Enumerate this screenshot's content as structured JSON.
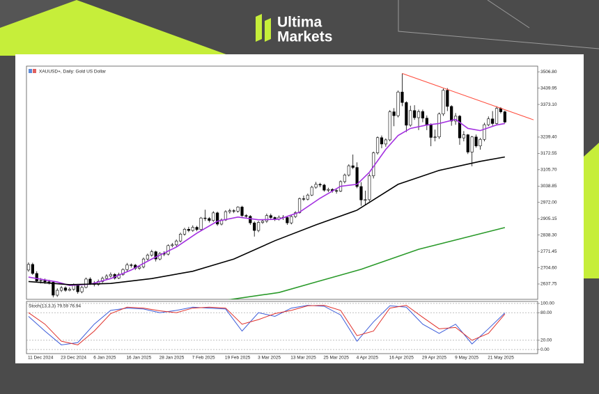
{
  "brand": {
    "line1": "Ultima",
    "line2": "Markets"
  },
  "chart_data": [
    {
      "type": "candlestick",
      "title": "XAUUSD+, Daily: Gold US Dollar",
      "categories": [
        "11 Dec 2024",
        null,
        null,
        null,
        null,
        null,
        null,
        null,
        "23 Dec 2024",
        null,
        null,
        null,
        null,
        null,
        null,
        null,
        "6 Jan 2025",
        null,
        null,
        null,
        null,
        null,
        null,
        null,
        "16 Jan 2025",
        null,
        null,
        null,
        null,
        null,
        null,
        null,
        "28 Jan 2025",
        null,
        null,
        null,
        null,
        null,
        null,
        null,
        "7 Feb 2025",
        null,
        null,
        null,
        null,
        null,
        null,
        null,
        "19 Feb 2025",
        null,
        null,
        null,
        null,
        null,
        null,
        null,
        "3 Mar 2025",
        null,
        null,
        null,
        null,
        null,
        null,
        null,
        "13 Mar 2025",
        null,
        null,
        null,
        null,
        null,
        null,
        null,
        "25 Mar 2025",
        null,
        null,
        null,
        null,
        null,
        null,
        null,
        "4 Apr 2025",
        null,
        null,
        null,
        null,
        null,
        null,
        null,
        "16 Apr 2025",
        null,
        null,
        null,
        null,
        null,
        null,
        null,
        "29 Apr 2025",
        null,
        null,
        null,
        null,
        null,
        null,
        null,
        "9 May 2025",
        null,
        null,
        null,
        null,
        null,
        null,
        null,
        "21 May 2025",
        null,
        null,
        null,
        null
      ],
      "ohlc": [
        [
          2695,
          2726,
          2688,
          2718
        ],
        [
          2718,
          2725,
          2675,
          2681
        ],
        [
          2681,
          2690,
          2644,
          2650
        ],
        [
          2650,
          2662,
          2640,
          2652
        ],
        [
          2652,
          2660,
          2638,
          2647
        ],
        [
          2647,
          2655,
          2636,
          2645
        ],
        [
          2645,
          2650,
          2583,
          2592
        ],
        [
          2592,
          2620,
          2585,
          2612
        ],
        [
          2612,
          2630,
          2605,
          2622
        ],
        [
          2622,
          2628,
          2606,
          2612
        ],
        [
          2612,
          2624,
          2608,
          2616
        ],
        [
          2616,
          2640,
          2610,
          2633
        ],
        [
          2633,
          2638,
          2598,
          2606
        ],
        [
          2606,
          2630,
          2600,
          2624
        ],
        [
          2624,
          2664,
          2620,
          2658
        ],
        [
          2658,
          2665,
          2634,
          2640
        ],
        [
          2640,
          2650,
          2628,
          2636
        ],
        [
          2636,
          2656,
          2630,
          2648
        ],
        [
          2648,
          2668,
          2642,
          2661
        ],
        [
          2661,
          2678,
          2655,
          2670
        ],
        [
          2670,
          2685,
          2664,
          2677
        ],
        [
          2677,
          2682,
          2656,
          2662
        ],
        [
          2662,
          2684,
          2658,
          2677
        ],
        [
          2677,
          2702,
          2672,
          2697
        ],
        [
          2697,
          2724,
          2690,
          2716
        ],
        [
          2716,
          2722,
          2705,
          2715
        ],
        [
          2715,
          2720,
          2695,
          2702
        ],
        [
          2702,
          2714,
          2696,
          2708
        ],
        [
          2708,
          2746,
          2702,
          2740
        ],
        [
          2740,
          2762,
          2734,
          2756
        ],
        [
          2756,
          2778,
          2750,
          2770
        ],
        [
          2770,
          2774,
          2730,
          2740
        ],
        [
          2740,
          2768,
          2735,
          2763
        ],
        [
          2763,
          2772,
          2752,
          2760
        ],
        [
          2760,
          2800,
          2755,
          2795
        ],
        [
          2795,
          2806,
          2788,
          2798
        ],
        [
          2798,
          2820,
          2792,
          2814
        ],
        [
          2814,
          2848,
          2808,
          2842
        ],
        [
          2842,
          2868,
          2836,
          2862
        ],
        [
          2862,
          2872,
          2850,
          2857
        ],
        [
          2857,
          2878,
          2852,
          2870
        ],
        [
          2870,
          2876,
          2854,
          2861
        ],
        [
          2861,
          2912,
          2856,
          2908
        ],
        [
          2908,
          2942,
          2896,
          2906
        ],
        [
          2906,
          2912,
          2890,
          2898
        ],
        [
          2898,
          2936,
          2892,
          2929
        ],
        [
          2929,
          2934,
          2876,
          2883
        ],
        [
          2883,
          2906,
          2878,
          2900
        ],
        [
          2900,
          2940,
          2896,
          2934
        ],
        [
          2934,
          2946,
          2926,
          2938
        ],
        [
          2938,
          2944,
          2928,
          2936
        ],
        [
          2936,
          2956,
          2930,
          2953
        ],
        [
          2953,
          2958,
          2912,
          2918
        ],
        [
          2918,
          2924,
          2906,
          2915
        ],
        [
          2915,
          2920,
          2880,
          2888
        ],
        [
          2888,
          2894,
          2832,
          2857
        ],
        [
          2857,
          2896,
          2850,
          2890
        ],
        [
          2890,
          2902,
          2884,
          2895
        ],
        [
          2895,
          2926,
          2888,
          2918
        ],
        [
          2918,
          2926,
          2902,
          2910
        ],
        [
          2910,
          2914,
          2896,
          2904
        ],
        [
          2904,
          2918,
          2898,
          2911
        ],
        [
          2911,
          2920,
          2900,
          2910
        ],
        [
          2910,
          2914,
          2880,
          2888
        ],
        [
          2888,
          2920,
          2882,
          2914
        ],
        [
          2914,
          2936,
          2908,
          2930
        ],
        [
          2930,
          2992,
          2926,
          2987
        ],
        [
          2987,
          3000,
          2978,
          2985
        ],
        [
          2985,
          3008,
          2980,
          3002
        ],
        [
          3002,
          3040,
          2998,
          3034
        ],
        [
          3034,
          3056,
          3028,
          3046
        ],
        [
          3046,
          3052,
          3034,
          3043
        ],
        [
          3043,
          3048,
          3016,
          3022
        ],
        [
          3022,
          3032,
          3014,
          3025
        ],
        [
          3025,
          3030,
          3012,
          3020
        ],
        [
          3020,
          3026,
          3008,
          3018
        ],
        [
          3018,
          3062,
          3014,
          3057
        ],
        [
          3057,
          3090,
          3050,
          3084
        ],
        [
          3084,
          3128,
          3078,
          3122
        ],
        [
          3122,
          3168,
          3108,
          3115
        ],
        [
          3115,
          3136,
          3030,
          3037
        ],
        [
          3037,
          3055,
          2958,
          2982
        ],
        [
          2982,
          3020,
          2960,
          2983
        ],
        [
          2983,
          3090,
          2976,
          3081
        ],
        [
          3081,
          3180,
          3070,
          3175
        ],
        [
          3175,
          3242,
          3168,
          3237
        ],
        [
          3237,
          3246,
          3194,
          3211
        ],
        [
          3211,
          3234,
          3200,
          3228
        ],
        [
          3228,
          3350,
          3222,
          3343
        ],
        [
          3343,
          3358,
          3284,
          3327
        ],
        [
          3327,
          3430,
          3320,
          3424
        ],
        [
          3424,
          3500,
          3366,
          3381
        ],
        [
          3381,
          3386,
          3260,
          3288
        ],
        [
          3288,
          3368,
          3282,
          3348
        ],
        [
          3348,
          3370,
          3310,
          3319
        ],
        [
          3319,
          3352,
          3268,
          3344
        ],
        [
          3344,
          3352,
          3300,
          3317
        ],
        [
          3317,
          3328,
          3268,
          3288
        ],
        [
          3288,
          3296,
          3202,
          3238
        ],
        [
          3238,
          3270,
          3222,
          3240
        ],
        [
          3240,
          3340,
          3232,
          3334
        ],
        [
          3334,
          3438,
          3326,
          3431
        ],
        [
          3431,
          3440,
          3346,
          3365
        ],
        [
          3365,
          3370,
          3286,
          3305
        ],
        [
          3305,
          3338,
          3290,
          3325
        ],
        [
          3325,
          3330,
          3208,
          3236
        ],
        [
          3236,
          3264,
          3222,
          3249
        ],
        [
          3249,
          3252,
          3170,
          3178
        ],
        [
          3178,
          3244,
          3120,
          3240
        ],
        [
          3240,
          3250,
          3196,
          3203
        ],
        [
          3203,
          3236,
          3188,
          3230
        ],
        [
          3230,
          3298,
          3222,
          3290
        ],
        [
          3290,
          3324,
          3284,
          3314
        ],
        [
          3314,
          3346,
          3286,
          3295
        ],
        [
          3295,
          3366,
          3288,
          3357
        ],
        [
          3357,
          3362,
          3336,
          3343
        ],
        [
          3343,
          3348,
          3296,
          3301
        ]
      ],
      "up_color": "#ffffff",
      "down_color": "#000000",
      "wick_color": "#000000",
      "series": [
        {
          "color": "#a330e0",
          "x": [
            0,
            7,
            10,
            15,
            20,
            25,
            30,
            36,
            41,
            46,
            51,
            56,
            61,
            66,
            71,
            76,
            80,
            83,
            87,
            90,
            93,
            97,
            100,
            104,
            107,
            110,
            114,
            116
          ],
          "values": [
            2666,
            2646,
            2632,
            2637,
            2660,
            2695,
            2740,
            2789,
            2846,
            2895,
            2912,
            2901,
            2903,
            2932,
            2989,
            3038,
            3046,
            3095,
            3189,
            3246,
            3275,
            3289,
            3295,
            3312,
            3275,
            3266,
            3289,
            3295
          ]
        },
        {
          "color": "#000000",
          "x": [
            0,
            10,
            20,
            30,
            40,
            50,
            60,
            70,
            80,
            90,
            100,
            110,
            116
          ],
          "values": [
            2648,
            2635,
            2640,
            2660,
            2690,
            2740,
            2815,
            2880,
            2940,
            3046,
            3103,
            3140,
            3158
          ]
        },
        {
          "color": "#2a9a2a",
          "x": [
            47,
            61,
            70,
            81,
            95,
            116
          ],
          "values": [
            2569,
            2603,
            2646,
            2698,
            2780,
            2869
          ]
        },
        {
          "color": "#ff4a3a",
          "x": [
            91,
            123
          ],
          "values": [
            3500,
            3310
          ]
        }
      ],
      "xlim": [
        -0.5,
        124
      ],
      "ylim": [
        2575,
        3530
      ],
      "yticks": [
        {
          "value": 3506.8,
          "label": "3506.80"
        },
        3439.95,
        {
          "value": 3373.1,
          "label": "3373.10"
        },
        {
          "value": 3239.4,
          "label": "3239.40"
        },
        3172.55,
        {
          "value": 3105.7,
          "label": "3105.70"
        },
        3038.85,
        {
          "value": 2972,
          "label": "2972.00"
        },
        2905.15,
        {
          "value": 2838.3,
          "label": "2838.30"
        },
        2771.45,
        {
          "value": 2704.6,
          "label": "2704.60"
        },
        2637.75
      ],
      "grid": false
    },
    {
      "type": "line",
      "title": "Stoch(13,3,3) 79.59 76.94",
      "series": [
        {
          "color": "#3a5bd9",
          "x": [
            0,
            4,
            8,
            12,
            16,
            20,
            24,
            28,
            32,
            36,
            40,
            44,
            48,
            52,
            56,
            60,
            64,
            68,
            72,
            76,
            80,
            84,
            88,
            92,
            96,
            100,
            104,
            108,
            112,
            116
          ],
          "values": [
            72,
            40,
            10,
            15,
            55,
            85,
            90,
            88,
            80,
            85,
            92,
            90,
            88,
            40,
            80,
            72,
            90,
            96,
            94,
            75,
            18,
            60,
            95,
            92,
            55,
            35,
            55,
            12,
            45,
            79.59
          ]
        },
        {
          "color": "#e0302a",
          "x": [
            0,
            4,
            8,
            12,
            16,
            20,
            24,
            28,
            32,
            36,
            40,
            44,
            48,
            52,
            56,
            60,
            64,
            68,
            72,
            76,
            80,
            84,
            88,
            92,
            96,
            100,
            104,
            108,
            112,
            116
          ],
          "values": [
            80,
            55,
            18,
            10,
            40,
            78,
            92,
            90,
            84,
            80,
            90,
            92,
            90,
            55,
            65,
            78,
            85,
            95,
            96,
            85,
            30,
            40,
            90,
            96,
            70,
            45,
            48,
            20,
            35,
            76.94
          ]
        }
      ],
      "xlim": [
        -0.5,
        124
      ],
      "ylim": [
        -9,
        104.5
      ],
      "yticks": [
        {
          "value": 100,
          "label": "100.00"
        },
        {
          "value": 80,
          "label": "80.00"
        },
        {
          "value": 20,
          "label": "20.00"
        },
        {
          "value": 0,
          "label": "0.00"
        }
      ],
      "grid": true
    }
  ]
}
